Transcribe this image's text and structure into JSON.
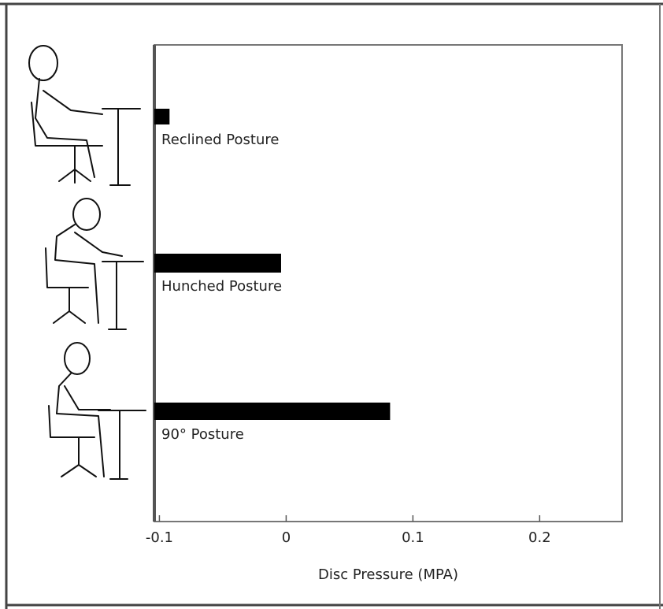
{
  "chart_data": {
    "type": "barh",
    "x_label": "Disc Pressure (MPA)",
    "categories": [
      "Reclined Posture",
      "Hunched Posture",
      "90° Posture"
    ],
    "values": [
      -0.092,
      -0.004,
      0.082
    ],
    "color": "#000000",
    "xlim": [
      -0.104,
      0.265
    ],
    "xticks": [
      -0.1,
      0,
      0.1,
      0.2
    ],
    "grid": false
  }
}
